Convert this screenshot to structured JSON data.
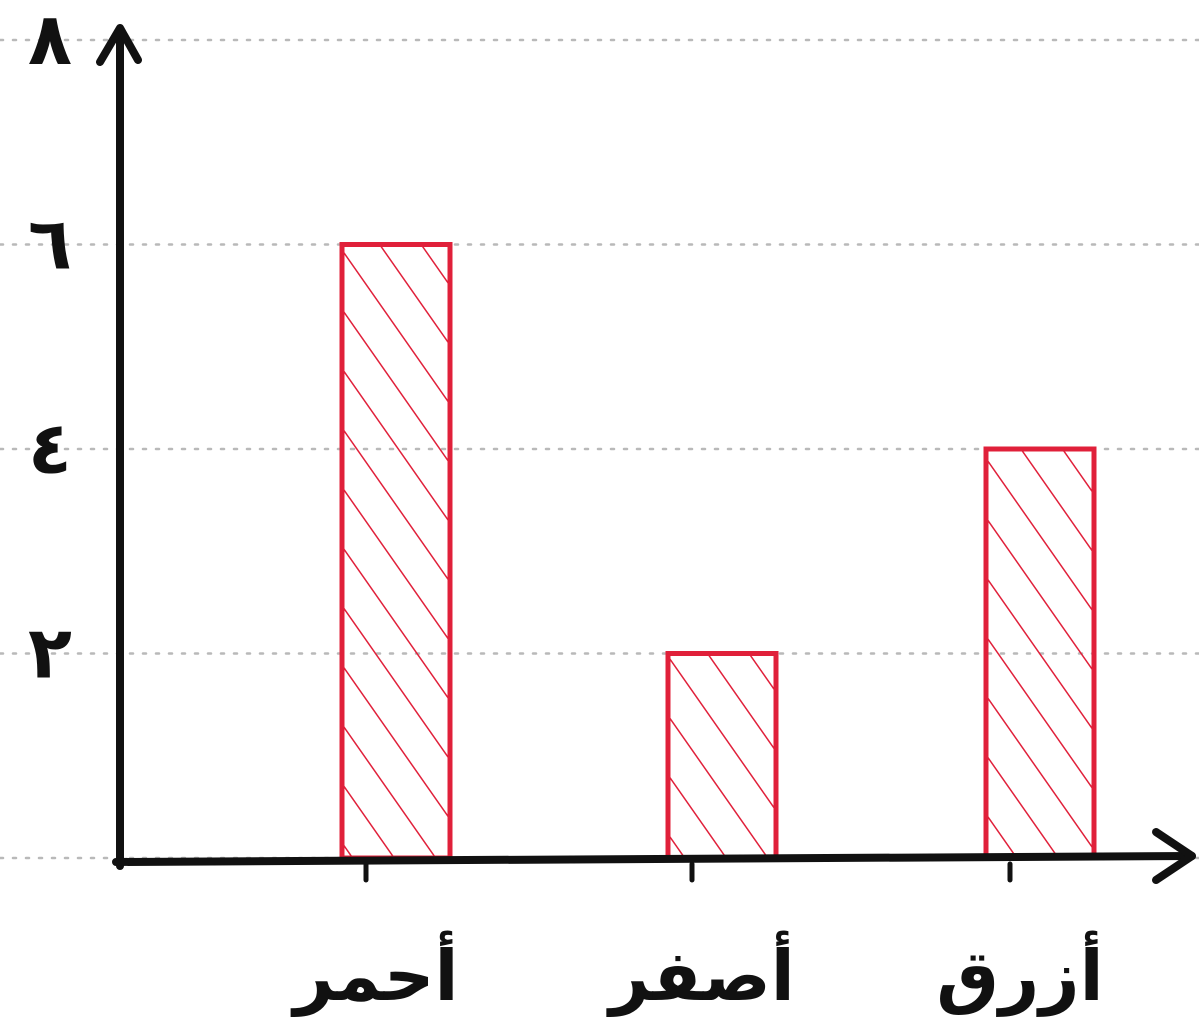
{
  "chart_data": {
    "type": "bar",
    "categories": [
      "أحمر",
      "أصفر",
      "أزرق"
    ],
    "values": [
      6,
      2,
      4
    ],
    "y_ticks": [
      "٢",
      "٤",
      "٦",
      "٨"
    ],
    "y_tick_values": [
      2,
      4,
      6,
      8
    ],
    "ylim": [
      0,
      8
    ],
    "grid": true,
    "bar_color": "#e0203a",
    "axis_color": "#111111",
    "grid_color": "#b9b9b9",
    "bar_fill": "hatched"
  }
}
